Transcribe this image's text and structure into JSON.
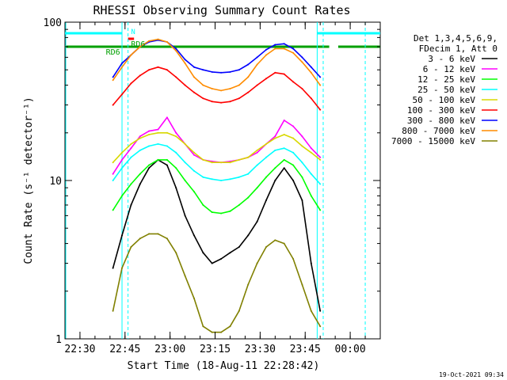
{
  "chart_data": {
    "type": "line",
    "title": "RHESSI Observing Summary Count Rates",
    "xlabel": "Start Time (18-Aug-11 22:28:42)",
    "ylabel": "Count Rate (s⁻¹ detector⁻¹)",
    "y_scale": "log",
    "ylim": [
      1,
      100
    ],
    "xlim": [
      "22:25",
      "00:10"
    ],
    "x_tick_labels": [
      "22:30",
      "22:45",
      "23:00",
      "23:15",
      "23:30",
      "23:45",
      "00:00"
    ],
    "y_tick_labels": [
      "1",
      "10",
      "100"
    ],
    "timestamp": "19-Oct-2021 09:34",
    "legend": {
      "header": [
        "Det 1,3,4,5,6,9,",
        "FDecim 1, Att 0"
      ],
      "placement": "right, outside the plot"
    },
    "annotations": [
      "RD6",
      "RD6",
      "N"
    ],
    "flag_bars": [
      {
        "name": "N",
        "color": "#00ffff",
        "note": "night (eclipse)"
      },
      {
        "name": "RD6",
        "color": "#00a000",
        "note": "decimation"
      }
    ],
    "x": [
      "22:41",
      "22:44",
      "22:47",
      "22:50",
      "22:53",
      "22:56",
      "22:59",
      "23:02",
      "23:05",
      "23:08",
      "23:11",
      "23:14",
      "23:17",
      "23:20",
      "23:23",
      "23:26",
      "23:29",
      "23:32",
      "23:35",
      "23:38",
      "23:41",
      "23:44",
      "23:47",
      "23:50"
    ],
    "series": [
      {
        "name": "3 - 6 keV",
        "color": "#000000",
        "values": [
          2.8,
          4.5,
          7.0,
          9.5,
          12.0,
          13.5,
          12.5,
          9.0,
          6.0,
          4.5,
          3.5,
          3.0,
          3.2,
          3.5,
          3.8,
          4.5,
          5.5,
          7.5,
          10.0,
          12.0,
          10.0,
          7.5,
          3.0,
          1.5
        ]
      },
      {
        "name": "6 - 12 keV",
        "color": "#ff00ff",
        "values": [
          11.0,
          13.5,
          16.0,
          19.0,
          20.5,
          21.0,
          25.0,
          20.0,
          17.0,
          14.5,
          13.5,
          13.2,
          13.0,
          13.2,
          13.5,
          14.0,
          15.0,
          17.0,
          19.0,
          24.0,
          22.0,
          19.0,
          16.0,
          14.0
        ]
      },
      {
        "name": "12 - 25 keV",
        "color": "#00ff00",
        "values": [
          6.5,
          8.0,
          9.5,
          11.0,
          12.5,
          13.5,
          13.5,
          12.0,
          10.0,
          8.5,
          7.0,
          6.3,
          6.2,
          6.4,
          7.0,
          7.8,
          9.0,
          10.5,
          12.0,
          13.5,
          12.5,
          10.5,
          8.0,
          6.5
        ]
      },
      {
        "name": "25 - 50 keV",
        "color": "#00ffff",
        "values": [
          10.0,
          12.0,
          14.0,
          15.5,
          16.5,
          17.0,
          16.5,
          15.0,
          13.0,
          11.5,
          10.5,
          10.2,
          10.0,
          10.2,
          10.5,
          11.0,
          12.5,
          14.0,
          15.5,
          16.0,
          15.0,
          13.0,
          11.0,
          9.5
        ]
      },
      {
        "name": "50 - 100 keV",
        "color": "#d8d800",
        "values": [
          13.0,
          15.0,
          17.0,
          18.5,
          19.5,
          20.0,
          20.0,
          19.0,
          17.0,
          15.0,
          13.5,
          13.0,
          13.0,
          13.0,
          13.5,
          14.0,
          15.5,
          17.0,
          18.5,
          19.5,
          18.5,
          16.5,
          15.0,
          13.5
        ]
      },
      {
        "name": "100 - 300 keV",
        "color": "#ff0000",
        "values": [
          30.0,
          35.0,
          41.0,
          46.0,
          50.0,
          52.0,
          50.0,
          45.0,
          40.0,
          36.0,
          33.0,
          31.5,
          31.0,
          31.5,
          33.0,
          36.0,
          40.0,
          44.0,
          48.0,
          47.0,
          42.0,
          38.0,
          33.0,
          28.0
        ]
      },
      {
        "name": "300 - 800 keV",
        "color": "#0000ff",
        "values": [
          45.0,
          55.0,
          62.0,
          70.0,
          75.0,
          77.0,
          75.0,
          68.0,
          58.0,
          52.0,
          50.0,
          48.5,
          48.0,
          48.5,
          50.0,
          54.0,
          60.0,
          67.0,
          72.0,
          73.0,
          68.0,
          60.0,
          52.0,
          45.0
        ]
      },
      {
        "name": "800 - 7000 keV",
        "color": "#ff8c00",
        "values": [
          43.0,
          52.0,
          62.0,
          70.0,
          76.0,
          78.0,
          75.0,
          66.0,
          55.0,
          45.0,
          40.0,
          38.0,
          37.0,
          38.0,
          40.0,
          45.0,
          54.0,
          62.0,
          68.0,
          68.0,
          64.0,
          56.0,
          48.0,
          40.0
        ]
      },
      {
        "name": "7000 - 15000 keV",
        "color": "#808000",
        "values": [
          1.5,
          2.8,
          3.8,
          4.3,
          4.6,
          4.6,
          4.3,
          3.5,
          2.5,
          1.8,
          1.2,
          1.1,
          1.1,
          1.2,
          1.5,
          2.2,
          3.0,
          3.8,
          4.2,
          4.0,
          3.2,
          2.2,
          1.5,
          1.2
        ]
      }
    ],
    "grid": false
  }
}
